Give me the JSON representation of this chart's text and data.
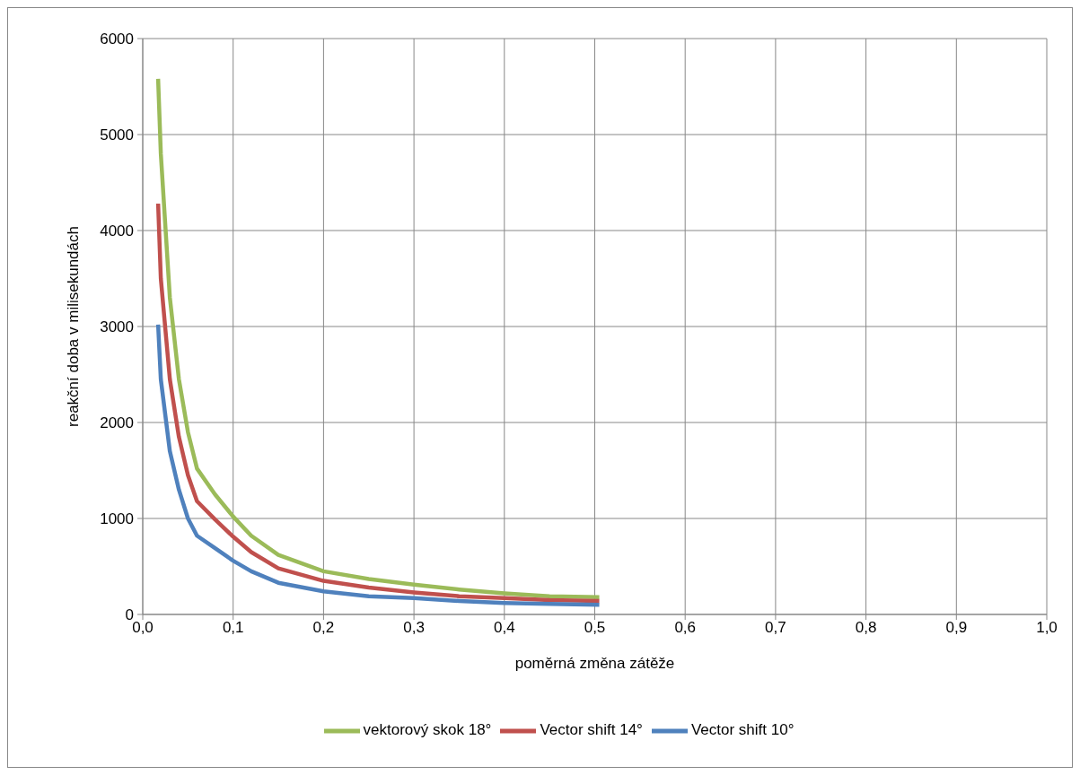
{
  "chart_data": {
    "type": "line",
    "xlabel": "poměrná změna zátěže",
    "ylabel": "reakční doba v milisekundách",
    "xlim": [
      0,
      1
    ],
    "xticks": [
      {
        "value": 0,
        "label": "0,0"
      },
      {
        "value": 0.1,
        "label": "0,1"
      },
      {
        "value": 0.2,
        "label": "0,2"
      },
      {
        "value": 0.3,
        "label": "0,3"
      },
      {
        "value": 0.4,
        "label": "0,4"
      },
      {
        "value": 0.5,
        "label": "0,5"
      },
      {
        "value": 0.6,
        "label": "0,6"
      },
      {
        "value": 0.7,
        "label": "0,7"
      },
      {
        "value": 0.8,
        "label": "0,8"
      },
      {
        "value": 0.9,
        "label": "0,9"
      },
      {
        "value": 1,
        "label": "1,0"
      }
    ],
    "ylim": [
      0,
      6000
    ],
    "yticks": [
      0,
      1000,
      2000,
      3000,
      4000,
      5000,
      6000
    ],
    "grid": true,
    "legend": "bottom",
    "marker": "none",
    "line_style": "solid",
    "x": [
      0.017,
      0.02,
      0.03,
      0.04,
      0.05,
      0.06,
      0.08,
      0.1,
      0.12,
      0.15,
      0.2,
      0.25,
      0.3,
      0.35,
      0.4,
      0.45,
      0.505
    ],
    "series": [
      {
        "name": "vektorový skok 18°",
        "color": "#9bbb59",
        "values": [
          5580,
          4800,
          3300,
          2450,
          1900,
          1520,
          1250,
          1020,
          820,
          620,
          450,
          370,
          310,
          260,
          220,
          190,
          180
        ]
      },
      {
        "name": "Vector shift 14°",
        "color": "#c0504d",
        "values": [
          4280,
          3500,
          2450,
          1850,
          1450,
          1180,
          990,
          810,
          650,
          480,
          350,
          280,
          230,
          190,
          170,
          150,
          140
        ]
      },
      {
        "name": "Vector shift 10°",
        "color": "#4f81bd",
        "values": [
          3020,
          2450,
          1700,
          1300,
          1000,
          820,
          690,
          560,
          450,
          330,
          240,
          190,
          170,
          140,
          120,
          110,
          100
        ]
      }
    ]
  }
}
